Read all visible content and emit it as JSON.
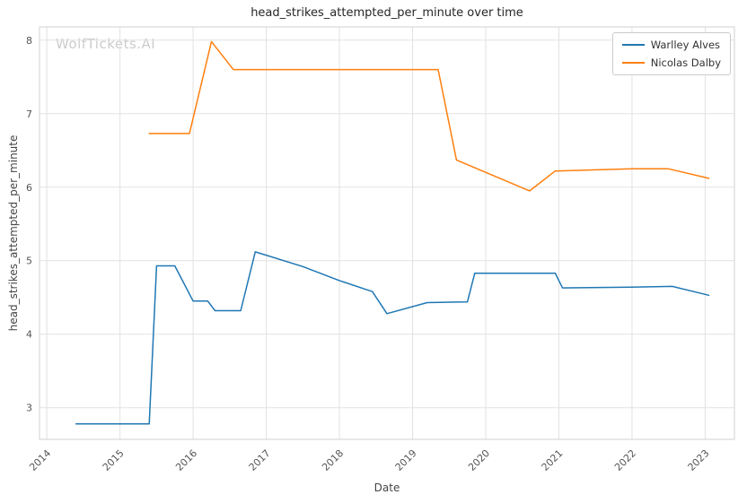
{
  "watermark": "WolfTickets.AI",
  "chart_data": {
    "type": "line",
    "title": "head_strikes_attempted_per_minute over time",
    "xlabel": "Date",
    "ylabel": "head_strikes_attempted_per_minute",
    "xlim": [
      2013.9,
      2023.4
    ],
    "ylim": [
      2.57,
      8.18
    ],
    "x_ticks": [
      2014,
      2015,
      2016,
      2017,
      2018,
      2019,
      2020,
      2021,
      2022,
      2023
    ],
    "y_ticks": [
      3,
      4,
      5,
      6,
      7,
      8
    ],
    "grid": true,
    "legend_position": "upper right",
    "series": [
      {
        "name": "Warlley Alves",
        "color": "#1f77b4",
        "points": [
          [
            2014.4,
            2.78
          ],
          [
            2015.4,
            2.78
          ],
          [
            2015.5,
            4.93
          ],
          [
            2015.75,
            4.93
          ],
          [
            2016.0,
            4.45
          ],
          [
            2016.2,
            4.45
          ],
          [
            2016.3,
            4.32
          ],
          [
            2016.65,
            4.32
          ],
          [
            2016.85,
            5.12
          ],
          [
            2017.5,
            4.92
          ],
          [
            2018.0,
            4.73
          ],
          [
            2018.45,
            4.58
          ],
          [
            2018.65,
            4.28
          ],
          [
            2019.2,
            4.43
          ],
          [
            2019.75,
            4.44
          ],
          [
            2019.85,
            4.83
          ],
          [
            2020.95,
            4.83
          ],
          [
            2021.05,
            4.63
          ],
          [
            2022.0,
            4.64
          ],
          [
            2022.55,
            4.65
          ],
          [
            2023.05,
            4.53
          ]
        ]
      },
      {
        "name": "Nicolas Dalby",
        "color": "#ff7f0e",
        "points": [
          [
            2015.4,
            6.73
          ],
          [
            2015.95,
            6.73
          ],
          [
            2016.25,
            7.98
          ],
          [
            2016.55,
            7.6
          ],
          [
            2019.35,
            7.6
          ],
          [
            2019.6,
            6.37
          ],
          [
            2020.6,
            5.95
          ],
          [
            2020.95,
            6.22
          ],
          [
            2022.0,
            6.25
          ],
          [
            2022.5,
            6.25
          ],
          [
            2023.05,
            6.12
          ]
        ]
      }
    ]
  }
}
